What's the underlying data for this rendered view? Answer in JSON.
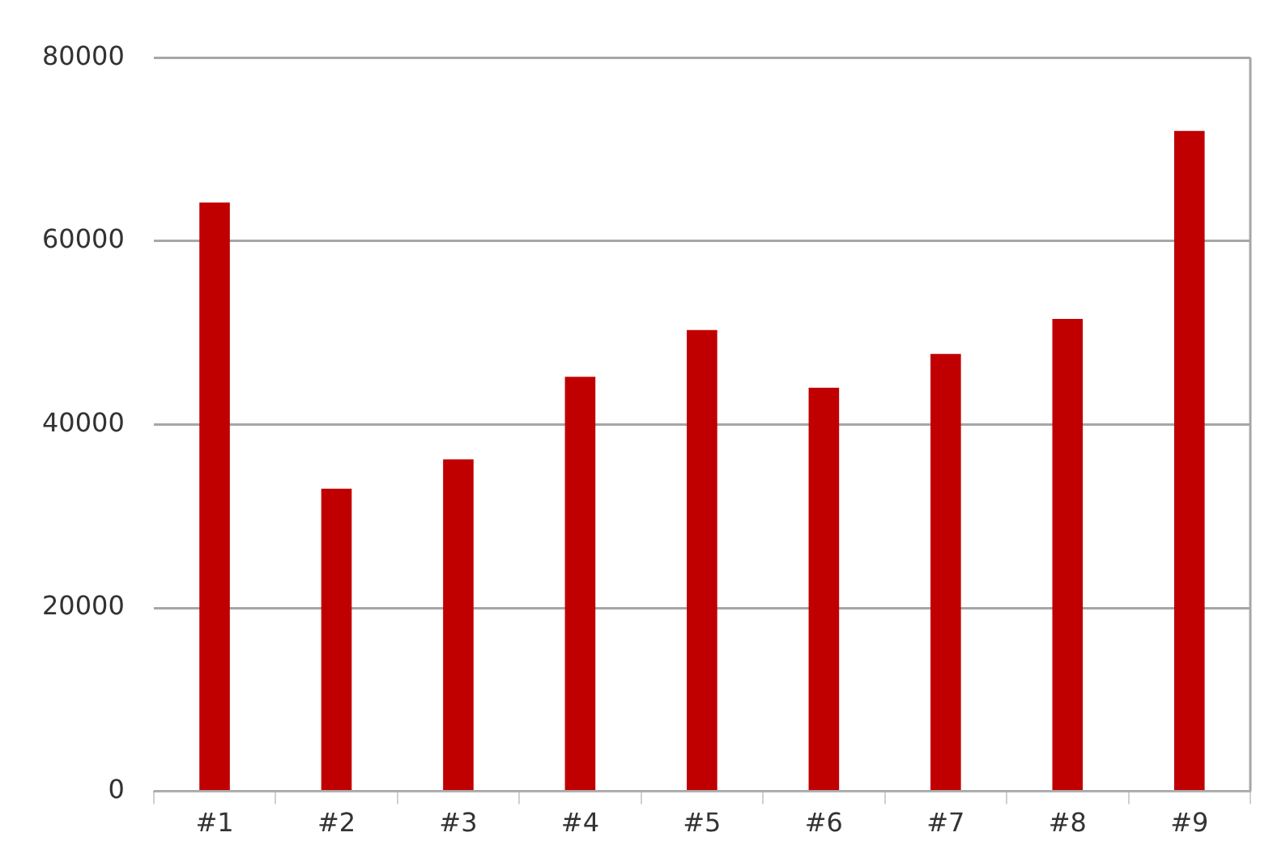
{
  "chart_data": {
    "type": "bar",
    "categories": [
      "#1",
      "#2",
      "#3",
      "#4",
      "#5",
      "#6",
      "#7",
      "#8",
      "#9"
    ],
    "values": [
      64200,
      33000,
      36200,
      45200,
      50300,
      44000,
      47700,
      51500,
      72000
    ],
    "color": "#c00000",
    "ylim": [
      0,
      80000
    ],
    "yticks": [
      0,
      20000,
      40000,
      60000,
      80000
    ],
    "grid": "y",
    "legend": false
  }
}
